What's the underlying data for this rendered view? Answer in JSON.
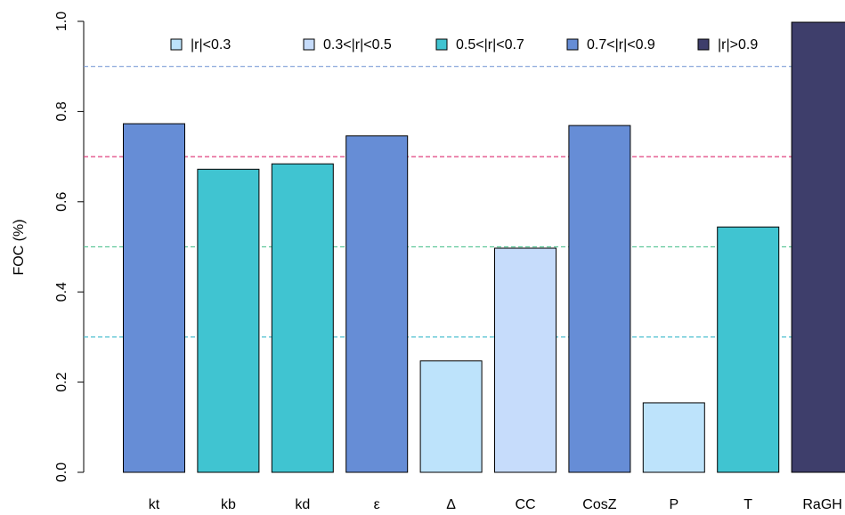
{
  "chart_data": {
    "type": "bar",
    "y_label": "FOC (%)",
    "categories": [
      "kt",
      "kb",
      "kd",
      "ε",
      "Δ",
      "CC",
      "CosZ",
      "P",
      "T",
      "RaGH"
    ],
    "values": [
      0.773,
      0.672,
      0.684,
      0.746,
      0.247,
      0.497,
      0.769,
      0.154,
      0.544,
      0.998
    ],
    "colors": [
      "#668dd6",
      "#40c4d1",
      "#40c4d1",
      "#668dd6",
      "#bde3fb",
      "#c6dcfb",
      "#668dd6",
      "#bde3fb",
      "#40c4d1",
      "#3e3e6b"
    ],
    "legend": [
      {
        "name": "|r|<0.3",
        "color": "#bde3fb"
      },
      {
        "name": "0.3<|r|<0.5",
        "color": "#c6dcfb"
      },
      {
        "name": "0.5<|r|<0.7",
        "color": "#40c4d1"
      },
      {
        "name": "0.7<|r|<0.9",
        "color": "#668dd6"
      },
      {
        "name": "|r|>0.9",
        "color": "#3e3e6b"
      }
    ],
    "reference_lines": [
      {
        "value": 0.9,
        "color": "#7f9fd8"
      },
      {
        "value": 0.7,
        "color": "#e0407f"
      },
      {
        "value": 0.5,
        "color": "#5fc89a"
      },
      {
        "value": 0.3,
        "color": "#50c0d0"
      }
    ],
    "ylim": [
      0,
      1
    ],
    "yticks": [
      {
        "value": 0,
        "label": "0.0"
      },
      0.2,
      0.4,
      0.6,
      0.8,
      {
        "value": 1,
        "label": "1.0"
      }
    ]
  }
}
